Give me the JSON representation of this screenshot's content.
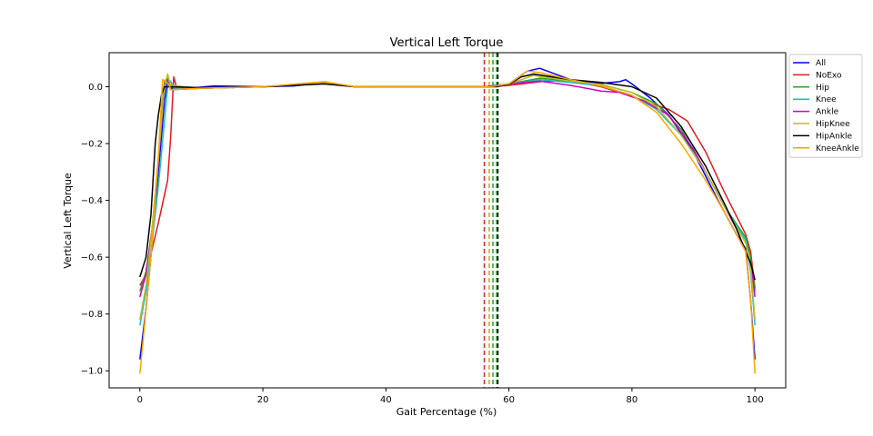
{
  "chart_data": {
    "type": "line",
    "title": "Vertical Left Torque",
    "xlabel": "Gait Percentage (%)",
    "ylabel": "Vertical Left Torque",
    "xlim": [
      -5,
      105
    ],
    "ylim": [
      -1.06,
      0.12
    ],
    "xticks": [
      0,
      20,
      40,
      60,
      80,
      100
    ],
    "yticks": [
      0.0,
      -0.2,
      -0.4,
      -0.6,
      -0.8,
      -1.0
    ],
    "xtick_labels": [
      "0",
      "20",
      "40",
      "60",
      "80",
      "100"
    ],
    "ytick_labels": [
      "0.0",
      "−0.2",
      "−0.4",
      "−0.6",
      "−0.8",
      "−1.0"
    ],
    "legend_position": "outside-top-right",
    "vlines": [
      {
        "x": 56.0,
        "color": "#d62728"
      },
      {
        "x": 56.8,
        "color": "#d4a017"
      },
      {
        "x": 57.4,
        "color": "#2ca02c"
      },
      {
        "x": 58.0,
        "color": "#2ca02c"
      },
      {
        "x": 58.2,
        "color": "#000000"
      }
    ],
    "series": [
      {
        "name": "All",
        "color": "#0000ff",
        "points": [
          [
            0,
            -0.96
          ],
          [
            1,
            -0.78
          ],
          [
            2,
            -0.55
          ],
          [
            3,
            -0.3
          ],
          [
            4,
            -0.05
          ],
          [
            4.5,
            0.03
          ],
          [
            5,
            -0.005
          ],
          [
            8,
            -0.005
          ],
          [
            12,
            0.003
          ],
          [
            20,
            0.0
          ],
          [
            25,
            0.003
          ],
          [
            30,
            0.015
          ],
          [
            35,
            0.0
          ],
          [
            50,
            0.0
          ],
          [
            56,
            0.0
          ],
          [
            60,
            0.01
          ],
          [
            63,
            0.055
          ],
          [
            65,
            0.065
          ],
          [
            70,
            0.025
          ],
          [
            75,
            0.012
          ],
          [
            78,
            0.018
          ],
          [
            79,
            0.025
          ],
          [
            80,
            0.01
          ],
          [
            83,
            -0.04
          ],
          [
            86,
            -0.1
          ],
          [
            90,
            -0.23
          ],
          [
            94,
            -0.4
          ],
          [
            97,
            -0.52
          ],
          [
            98.5,
            -0.57
          ],
          [
            99.3,
            -0.75
          ],
          [
            100,
            -0.96
          ]
        ]
      },
      {
        "name": "NoExo",
        "color": "#e41a1c",
        "points": [
          [
            0,
            -0.7
          ],
          [
            1,
            -0.66
          ],
          [
            3,
            -0.48
          ],
          [
            4.5,
            -0.33
          ],
          [
            5,
            -0.18
          ],
          [
            5.5,
            0.035
          ],
          [
            6,
            -0.005
          ],
          [
            10,
            -0.005
          ],
          [
            20,
            0.0
          ],
          [
            30,
            0.012
          ],
          [
            35,
            0.0
          ],
          [
            56,
            0.0
          ],
          [
            60,
            0.005
          ],
          [
            66,
            0.02
          ],
          [
            70,
            0.02
          ],
          [
            75,
            0.0
          ],
          [
            78,
            -0.02
          ],
          [
            82,
            -0.05
          ],
          [
            86,
            -0.08
          ],
          [
            89,
            -0.12
          ],
          [
            92,
            -0.23
          ],
          [
            95,
            -0.37
          ],
          [
            98.5,
            -0.52
          ],
          [
            99.3,
            -0.58
          ],
          [
            100,
            -0.71
          ]
        ]
      },
      {
        "name": "Hip",
        "color": "#2ca02c",
        "points": [
          [
            0,
            -0.72
          ],
          [
            1,
            -0.65
          ],
          [
            2,
            -0.5
          ],
          [
            3,
            -0.25
          ],
          [
            4,
            0.02
          ],
          [
            4.5,
            0.03
          ],
          [
            5,
            -0.01
          ],
          [
            10,
            -0.005
          ],
          [
            20,
            0.0
          ],
          [
            30,
            0.012
          ],
          [
            35,
            0.0
          ],
          [
            57,
            0.0
          ],
          [
            60,
            0.01
          ],
          [
            65,
            0.03
          ],
          [
            70,
            0.02
          ],
          [
            75,
            0.008
          ],
          [
            80,
            -0.02
          ],
          [
            84,
            -0.06
          ],
          [
            88,
            -0.15
          ],
          [
            92,
            -0.3
          ],
          [
            95,
            -0.42
          ],
          [
            98.5,
            -0.53
          ],
          [
            99.3,
            -0.6
          ],
          [
            100,
            -0.72
          ]
        ]
      },
      {
        "name": "Knee",
        "color": "#17becf",
        "points": [
          [
            0,
            -0.84
          ],
          [
            1,
            -0.72
          ],
          [
            2,
            -0.55
          ],
          [
            3,
            -0.35
          ],
          [
            4,
            -0.12
          ],
          [
            4.6,
            0.02
          ],
          [
            5,
            0.02
          ],
          [
            5.5,
            -0.005
          ],
          [
            10,
            -0.005
          ],
          [
            20,
            0.0
          ],
          [
            30,
            0.012
          ],
          [
            35,
            0.0
          ],
          [
            57,
            0.0
          ],
          [
            60,
            0.01
          ],
          [
            65,
            0.025
          ],
          [
            70,
            0.015
          ],
          [
            75,
            0.003
          ],
          [
            80,
            -0.03
          ],
          [
            84,
            -0.08
          ],
          [
            88,
            -0.17
          ],
          [
            92,
            -0.3
          ],
          [
            95,
            -0.42
          ],
          [
            98.5,
            -0.54
          ],
          [
            99.3,
            -0.65
          ],
          [
            100,
            -0.84
          ]
        ]
      },
      {
        "name": "Ankle",
        "color": "#cc00cc",
        "points": [
          [
            0,
            -0.74
          ],
          [
            1,
            -0.66
          ],
          [
            2,
            -0.5
          ],
          [
            3,
            -0.27
          ],
          [
            4,
            0.01
          ],
          [
            4.5,
            0.02
          ],
          [
            5,
            -0.01
          ],
          [
            10,
            -0.005
          ],
          [
            20,
            0.0
          ],
          [
            30,
            0.012
          ],
          [
            35,
            0.0
          ],
          [
            57,
            0.0
          ],
          [
            60,
            0.01
          ],
          [
            65,
            0.02
          ],
          [
            70,
            0.005
          ],
          [
            75,
            -0.015
          ],
          [
            78,
            -0.02
          ],
          [
            82,
            -0.05
          ],
          [
            86,
            -0.1
          ],
          [
            90,
            -0.22
          ],
          [
            94,
            -0.38
          ],
          [
            97,
            -0.5
          ],
          [
            98.5,
            -0.58
          ],
          [
            99.3,
            -0.62
          ],
          [
            100,
            -0.74
          ]
        ]
      },
      {
        "name": "HipKnee",
        "color": "#bcbd22",
        "points": [
          [
            0,
            -0.82
          ],
          [
            1,
            -0.7
          ],
          [
            2,
            -0.5
          ],
          [
            3,
            -0.25
          ],
          [
            4,
            0.0
          ],
          [
            4.5,
            0.045
          ],
          [
            5,
            0.005
          ],
          [
            10,
            -0.005
          ],
          [
            20,
            0.0
          ],
          [
            30,
            0.015
          ],
          [
            35,
            0.0
          ],
          [
            57,
            0.0
          ],
          [
            60,
            0.01
          ],
          [
            64,
            0.04
          ],
          [
            70,
            0.02
          ],
          [
            75,
            0.008
          ],
          [
            80,
            -0.02
          ],
          [
            84,
            -0.07
          ],
          [
            88,
            -0.17
          ],
          [
            92,
            -0.3
          ],
          [
            95,
            -0.42
          ],
          [
            98.5,
            -0.55
          ],
          [
            99.3,
            -0.63
          ],
          [
            100,
            -0.82
          ]
        ]
      },
      {
        "name": "HipAnkle",
        "color": "#000000",
        "points": [
          [
            0,
            -0.67
          ],
          [
            1,
            -0.6
          ],
          [
            1.8,
            -0.45
          ],
          [
            2.5,
            -0.2
          ],
          [
            3,
            -0.1
          ],
          [
            3.5,
            -0.03
          ],
          [
            4,
            0.0
          ],
          [
            5,
            0.0
          ],
          [
            10,
            -0.003
          ],
          [
            20,
            0.0
          ],
          [
            30,
            0.01
          ],
          [
            35,
            0.0
          ],
          [
            58,
            0.0
          ],
          [
            60,
            0.008
          ],
          [
            62,
            0.035
          ],
          [
            64,
            0.045
          ],
          [
            70,
            0.025
          ],
          [
            75,
            0.015
          ],
          [
            80,
            0.0
          ],
          [
            84,
            -0.04
          ],
          [
            88,
            -0.14
          ],
          [
            92,
            -0.28
          ],
          [
            95,
            -0.41
          ],
          [
            97,
            -0.5
          ],
          [
            98.5,
            -0.58
          ],
          [
            99.3,
            -0.62
          ],
          [
            100,
            -0.68
          ]
        ]
      },
      {
        "name": "KneeAnkle",
        "color": "#ffa500",
        "points": [
          [
            0,
            -1.01
          ],
          [
            0.5,
            -0.9
          ],
          [
            1,
            -0.78
          ],
          [
            2,
            -0.55
          ],
          [
            3,
            -0.25
          ],
          [
            3.7,
            0.025
          ],
          [
            4.2,
            0.02
          ],
          [
            4.8,
            0.005
          ],
          [
            5,
            -0.01
          ],
          [
            10,
            -0.005
          ],
          [
            20,
            0.0
          ],
          [
            30,
            0.018
          ],
          [
            35,
            0.0
          ],
          [
            57,
            0.0
          ],
          [
            60,
            0.01
          ],
          [
            63,
            0.055
          ],
          [
            65,
            0.05
          ],
          [
            70,
            0.025
          ],
          [
            75,
            0.003
          ],
          [
            80,
            -0.03
          ],
          [
            84,
            -0.09
          ],
          [
            88,
            -0.2
          ],
          [
            92,
            -0.33
          ],
          [
            95,
            -0.44
          ],
          [
            98.5,
            -0.58
          ],
          [
            99.3,
            -0.75
          ],
          [
            100,
            -1.01
          ]
        ]
      }
    ]
  }
}
